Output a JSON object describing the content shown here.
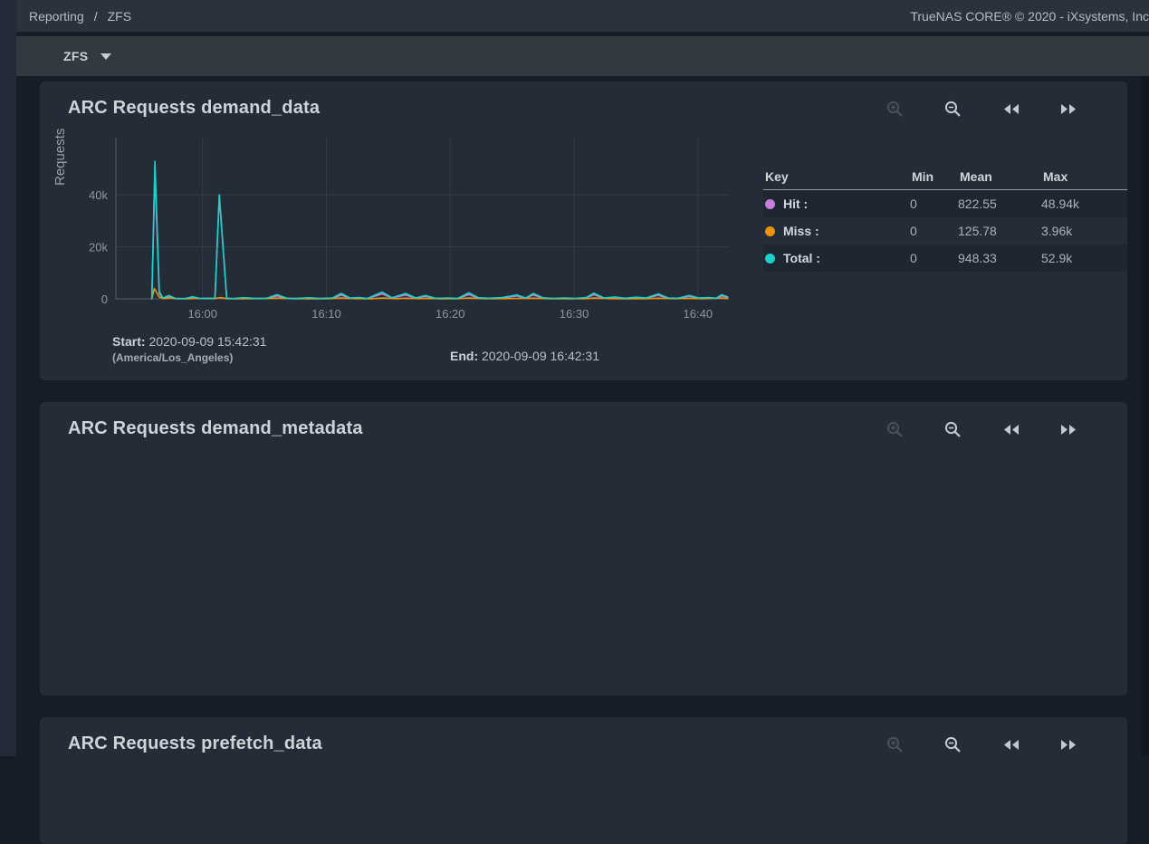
{
  "topbar": {
    "breadcrumb": {
      "items": [
        "Reporting",
        "ZFS"
      ],
      "separator": "/"
    },
    "brand": "TrueNAS CORE® © 2020 - iXsystems, Inc"
  },
  "tabbar": {
    "selected": "ZFS"
  },
  "cards": [
    {
      "title": "ARC Requests demand_data",
      "toolbar_icons": [
        "zoom-in",
        "zoom-out",
        "step-back",
        "step-forward"
      ],
      "times": {
        "start_label": "Start:",
        "start_value": "2020-09-09 15:42:31",
        "timezone": "(America/Los_Angeles)",
        "end_label": "End:",
        "end_value": "2020-09-09 16:42:31"
      }
    },
    {
      "title": "ARC Requests demand_metadata",
      "toolbar_icons": [
        "zoom-in",
        "zoom-out",
        "step-back",
        "step-forward"
      ]
    },
    {
      "title": "ARC Requests prefetch_data",
      "toolbar_icons": [
        "zoom-in",
        "zoom-out",
        "step-back",
        "step-forward"
      ]
    }
  ],
  "chart_data": {
    "type": "line",
    "title": "ARC Requests demand_data",
    "ylabel": "Requests",
    "x_unit": "minutes after 15:00 on 2020-09-09",
    "x_range": [
      53,
      102.5
    ],
    "ylim": [
      0,
      62000
    ],
    "grid": true,
    "legend_position": "right-table",
    "legend_headers": [
      "Key",
      "Min",
      "Mean",
      "Max"
    ],
    "x_ticks": [
      {
        "t": 60,
        "label": "16:00"
      },
      {
        "t": 70,
        "label": "16:10"
      },
      {
        "t": 80,
        "label": "16:20"
      },
      {
        "t": 90,
        "label": "16:30"
      },
      {
        "t": 100,
        "label": "16:40"
      }
    ],
    "y_ticks": [
      {
        "v": 0,
        "label": "0"
      },
      {
        "v": 20000,
        "label": "20k"
      },
      {
        "v": 40000,
        "label": "40k"
      }
    ],
    "series": [
      {
        "name": "Hit",
        "legend_label": "Hit :",
        "color": "#c77fd9",
        "min": "0",
        "mean": "822.55",
        "max": "48.94k",
        "points": [
          [
            55.9,
            40
          ],
          [
            56.15,
            48940
          ],
          [
            56.5,
            2100
          ],
          [
            56.8,
            220
          ],
          [
            57.3,
            950
          ],
          [
            57.8,
            110
          ],
          [
            58.6,
            80
          ],
          [
            59.2,
            580
          ],
          [
            59.8,
            100
          ],
          [
            60.4,
            190
          ],
          [
            61.0,
            130
          ],
          [
            61.35,
            39550
          ],
          [
            61.95,
            190
          ],
          [
            62.5,
            80
          ],
          [
            63.3,
            330
          ],
          [
            64.3,
            100
          ],
          [
            65.2,
            190
          ],
          [
            66.0,
            1150
          ],
          [
            66.8,
            190
          ],
          [
            67.6,
            100
          ],
          [
            68.6,
            300
          ],
          [
            69.5,
            100
          ],
          [
            70.5,
            260
          ],
          [
            71.2,
            1500
          ],
          [
            71.9,
            220
          ],
          [
            72.6,
            380
          ],
          [
            73.3,
            100
          ],
          [
            74.5,
            1900
          ],
          [
            75.3,
            300
          ],
          [
            76.4,
            1500
          ],
          [
            77.2,
            260
          ],
          [
            78.0,
            950
          ],
          [
            78.8,
            160
          ],
          [
            79.8,
            260
          ],
          [
            80.6,
            110
          ],
          [
            81.5,
            1650
          ],
          [
            82.3,
            300
          ],
          [
            83.2,
            190
          ],
          [
            84.2,
            380
          ],
          [
            85.4,
            1100
          ],
          [
            86.1,
            230
          ],
          [
            86.7,
            1500
          ],
          [
            87.5,
            300
          ],
          [
            88.3,
            110
          ],
          [
            89.2,
            260
          ],
          [
            90.1,
            110
          ],
          [
            91.0,
            380
          ],
          [
            91.6,
            1600
          ],
          [
            92.4,
            260
          ],
          [
            93.3,
            520
          ],
          [
            94.1,
            190
          ],
          [
            95.0,
            450
          ],
          [
            95.8,
            230
          ],
          [
            96.8,
            1400
          ],
          [
            97.6,
            260
          ],
          [
            98.4,
            190
          ],
          [
            99.3,
            950
          ],
          [
            100.1,
            230
          ],
          [
            100.9,
            380
          ],
          [
            101.5,
            190
          ],
          [
            101.9,
            1150
          ],
          [
            102.4,
            580
          ]
        ]
      },
      {
        "name": "Miss",
        "legend_label": "Miss :",
        "color": "#ee9308",
        "min": "0",
        "mean": "125.78",
        "max": "3.96k",
        "points": [
          [
            55.9,
            30
          ],
          [
            56.1,
            3960
          ],
          [
            56.5,
            650
          ],
          [
            56.9,
            120
          ],
          [
            57.3,
            380
          ],
          [
            57.9,
            60
          ],
          [
            58.8,
            40
          ],
          [
            59.4,
            160
          ],
          [
            60.2,
            60
          ],
          [
            61.0,
            90
          ],
          [
            61.4,
            480
          ],
          [
            62.0,
            60
          ],
          [
            63.2,
            40
          ],
          [
            64.8,
            100
          ],
          [
            66.0,
            280
          ],
          [
            67.2,
            60
          ],
          [
            68.8,
            40
          ],
          [
            70.2,
            60
          ],
          [
            71.2,
            320
          ],
          [
            72.4,
            60
          ],
          [
            73.6,
            40
          ],
          [
            74.5,
            300
          ],
          [
            75.6,
            60
          ],
          [
            76.4,
            260
          ],
          [
            77.6,
            60
          ],
          [
            78.0,
            160
          ],
          [
            79.2,
            40
          ],
          [
            80.6,
            60
          ],
          [
            81.5,
            300
          ],
          [
            82.8,
            60
          ],
          [
            84.2,
            80
          ],
          [
            85.4,
            160
          ],
          [
            86.7,
            260
          ],
          [
            88.0,
            60
          ],
          [
            89.6,
            40
          ],
          [
            91.0,
            80
          ],
          [
            91.6,
            300
          ],
          [
            93.0,
            60
          ],
          [
            94.4,
            40
          ],
          [
            95.8,
            80
          ],
          [
            96.8,
            260
          ],
          [
            98.2,
            60
          ],
          [
            99.3,
            160
          ],
          [
            100.4,
            60
          ],
          [
            101.9,
            300
          ],
          [
            102.4,
            120
          ]
        ]
      },
      {
        "name": "Total",
        "legend_label": "Total :",
        "color": "#19d2cc",
        "min": "0",
        "mean": "948.33",
        "max": "52.9k",
        "points": [
          [
            55.9,
            60
          ],
          [
            56.15,
            52900
          ],
          [
            56.5,
            2800
          ],
          [
            56.8,
            300
          ],
          [
            57.3,
            1300
          ],
          [
            57.8,
            160
          ],
          [
            58.6,
            120
          ],
          [
            59.2,
            800
          ],
          [
            59.8,
            140
          ],
          [
            60.4,
            260
          ],
          [
            61.0,
            180
          ],
          [
            61.35,
            40000
          ],
          [
            61.95,
            260
          ],
          [
            62.5,
            120
          ],
          [
            63.3,
            460
          ],
          [
            64.3,
            140
          ],
          [
            65.2,
            260
          ],
          [
            66.0,
            1600
          ],
          [
            66.8,
            260
          ],
          [
            67.6,
            140
          ],
          [
            68.6,
            420
          ],
          [
            69.5,
            140
          ],
          [
            70.5,
            360
          ],
          [
            71.2,
            2100
          ],
          [
            71.9,
            300
          ],
          [
            72.6,
            520
          ],
          [
            73.3,
            140
          ],
          [
            74.5,
            2600
          ],
          [
            75.3,
            420
          ],
          [
            76.4,
            2100
          ],
          [
            77.2,
            360
          ],
          [
            78.0,
            1300
          ],
          [
            78.8,
            220
          ],
          [
            79.8,
            360
          ],
          [
            80.6,
            160
          ],
          [
            81.5,
            2300
          ],
          [
            82.3,
            420
          ],
          [
            83.2,
            260
          ],
          [
            84.2,
            520
          ],
          [
            85.4,
            1500
          ],
          [
            86.1,
            320
          ],
          [
            86.7,
            2100
          ],
          [
            87.5,
            420
          ],
          [
            88.3,
            160
          ],
          [
            89.2,
            360
          ],
          [
            90.1,
            160
          ],
          [
            91.0,
            520
          ],
          [
            91.6,
            2200
          ],
          [
            92.4,
            360
          ],
          [
            93.3,
            720
          ],
          [
            94.1,
            260
          ],
          [
            95.0,
            620
          ],
          [
            95.8,
            320
          ],
          [
            96.8,
            1900
          ],
          [
            97.6,
            360
          ],
          [
            98.4,
            260
          ],
          [
            99.3,
            1300
          ],
          [
            100.1,
            320
          ],
          [
            100.9,
            520
          ],
          [
            101.5,
            260
          ],
          [
            101.9,
            1600
          ],
          [
            102.4,
            800
          ]
        ]
      }
    ]
  }
}
